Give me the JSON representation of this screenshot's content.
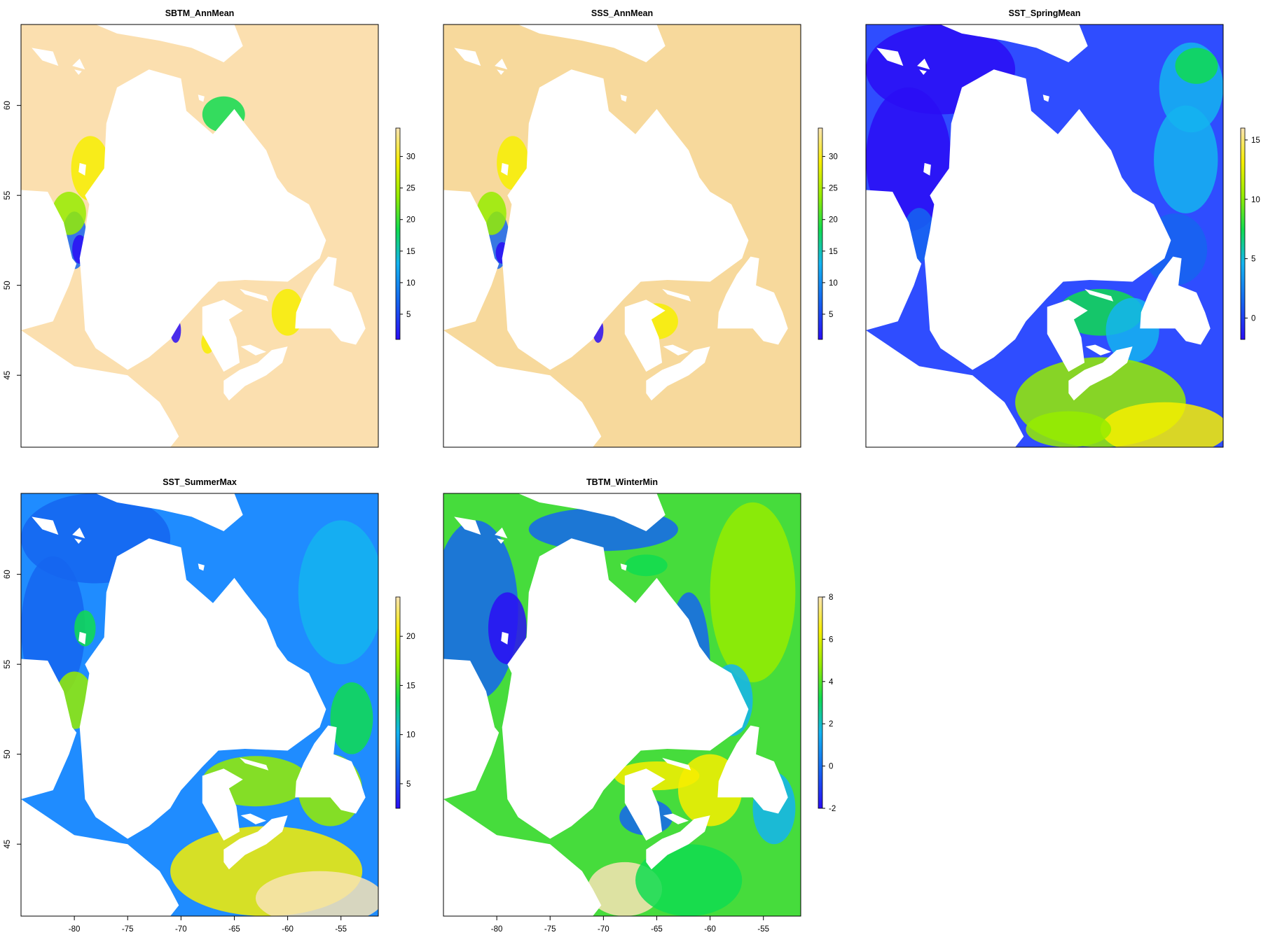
{
  "figure": {
    "panels": [
      {
        "title": "SBTM_AnnMean",
        "legend_ticks": [
          "5",
          "10",
          "15",
          "20",
          "25",
          "30"
        ],
        "legend_values": [
          5,
          10,
          15,
          20,
          25,
          30
        ],
        "legend_range": [
          1,
          34.5
        ],
        "ocean_fill": "#fbdfaf"
      },
      {
        "title": "SSS_AnnMean",
        "legend_ticks": [
          "5",
          "10",
          "15",
          "20",
          "25",
          "30"
        ],
        "legend_values": [
          5,
          10,
          15,
          20,
          25,
          30
        ],
        "legend_range": [
          1,
          34.5
        ],
        "ocean_fill": "#f7d99c"
      },
      {
        "title": "SST_SpringMean",
        "legend_ticks": [
          "0",
          "5",
          "10",
          "15"
        ],
        "legend_values": [
          0,
          5,
          10,
          15
        ],
        "legend_range": [
          -1.8,
          16
        ],
        "ocean_fill": "#2f4dff"
      },
      {
        "title": "SST_SummerMax",
        "legend_ticks": [
          "5",
          "10",
          "15",
          "20"
        ],
        "legend_values": [
          5,
          10,
          15,
          20
        ],
        "legend_range": [
          2.5,
          24
        ],
        "ocean_fill": "#1f8cff"
      },
      {
        "title": "TBTM_WinterMin",
        "legend_ticks": [
          "-2",
          "0",
          "2",
          "4",
          "6",
          "8"
        ],
        "legend_values": [
          -2,
          0,
          2,
          4,
          6,
          8
        ],
        "legend_range": [
          -2,
          8
        ],
        "ocean_fill": "#46dc3c"
      }
    ],
    "y_axis_ticks": [
      "45",
      "50",
      "55",
      "60"
    ],
    "y_axis_values": [
      45,
      50,
      55,
      60
    ],
    "x_axis_ticks": [
      "-80",
      "-75",
      "-70",
      "-65",
      "-60",
      "-55"
    ],
    "x_axis_values": [
      -80,
      -75,
      -70,
      -65,
      -60,
      -55
    ],
    "lon_range": [
      -85,
      -51.5
    ],
    "lat_range": [
      41,
      64.5
    ],
    "land_color": "#ffffff",
    "colormap": [
      "#2a0df5",
      "#1565f0",
      "#14b4f0",
      "#10dc50",
      "#96ec00",
      "#f7ee00",
      "#f8e3b4"
    ]
  }
}
